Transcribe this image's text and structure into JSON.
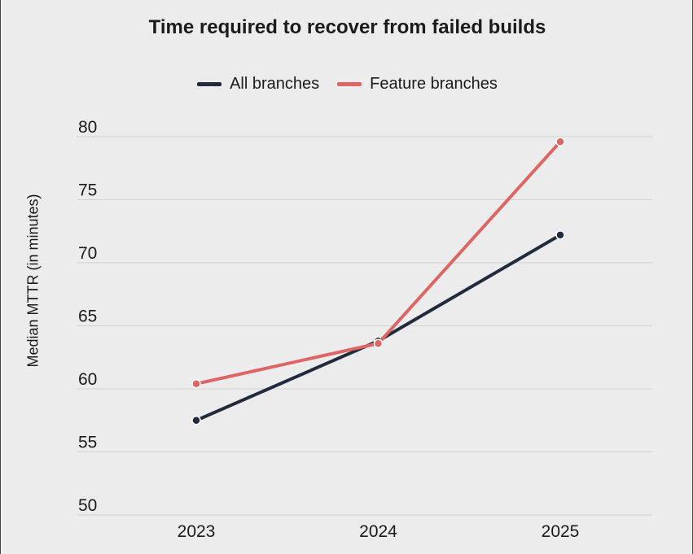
{
  "chart_data": {
    "type": "line",
    "title": "Time required to recover from failed builds",
    "ylabel": "Median MTTR (in minutes)",
    "xlabel": "",
    "categories": [
      "2023",
      "2024",
      "2025"
    ],
    "yticks": [
      "50",
      "55",
      "60",
      "65",
      "70",
      "75",
      "80"
    ],
    "ylim": [
      50,
      80
    ],
    "grid": "horizontal",
    "legend_position": "top-center",
    "series": [
      {
        "name": "All branches",
        "color": "#222a3d",
        "values": [
          57.5,
          63.8,
          72.2
        ]
      },
      {
        "name": "Feature branches",
        "color": "#dd6563",
        "values": [
          60.4,
          63.6,
          79.6
        ]
      }
    ]
  }
}
